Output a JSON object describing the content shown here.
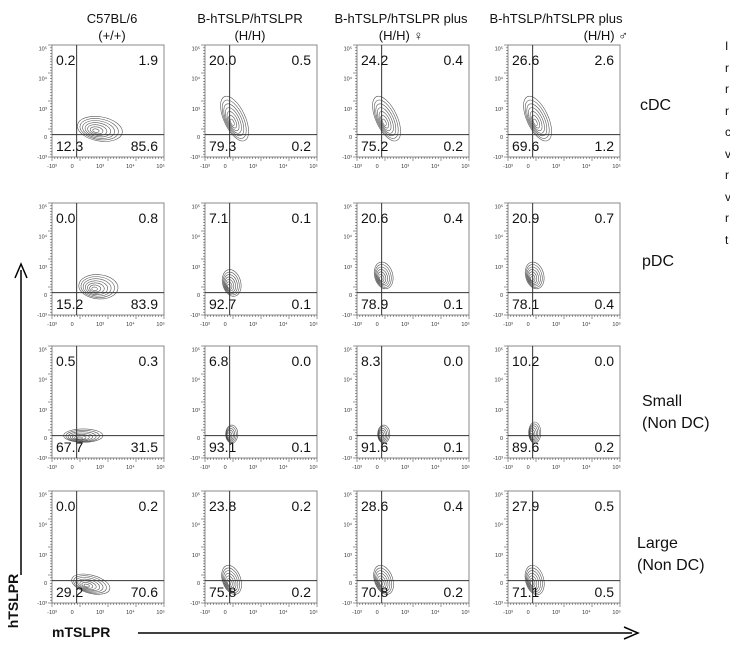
{
  "columns": [
    {
      "line1": "C57BL/6",
      "line2": "(+/+)"
    },
    {
      "line1": "B-hTSLP/hTSLPR",
      "line2": "(H/H)"
    },
    {
      "line1": "B-hTSLP/hTSLPR plus",
      "line2": "(H/H) ♀"
    },
    {
      "line1": "B-hTSLP/hTSLPR plus",
      "line2": "(H/H) ♂"
    }
  ],
  "rows": [
    {
      "line1": "cDC",
      "line2": ""
    },
    {
      "line1": "pDC",
      "line2": ""
    },
    {
      "line1": "Small",
      "line2": "(Non DC)"
    },
    {
      "line1": "Large",
      "line2": "(Non DC)"
    }
  ],
  "axes": {
    "x_label": "mTSLPR",
    "y_label": "hTSLPR"
  },
  "side_letters": [
    "I",
    "r",
    "r",
    "r",
    "c",
    "v",
    "r",
    "v",
    "r",
    "t"
  ],
  "chart_data": {
    "type": "contour",
    "x_axis": {
      "scale": "biexponential",
      "ticks": [
        "-10³",
        "0",
        "10³",
        "10⁴",
        "10⁵"
      ]
    },
    "y_axis": {
      "scale": "biexponential",
      "ticks": [
        "-10³",
        "0",
        "10³",
        "10⁴",
        "10⁵"
      ]
    },
    "quadrant_order": [
      "upper-left",
      "upper-right",
      "lower-left",
      "lower-right"
    ],
    "panels": [
      [
        {
          "quadrants": [
            "0.2",
            "1.9",
            "12.3",
            "85.6"
          ],
          "blob": {
            "cx": 0.7,
            "cy": 0.2,
            "rx": 0.75,
            "ry": 0.4,
            "rot": -10
          }
        },
        {
          "quadrants": [
            "20.0",
            "0.5",
            "79.3",
            "0.2"
          ],
          "blob": {
            "cx": 0.1,
            "cy": 0.5,
            "rx": 0.35,
            "ry": 0.8,
            "rot": 25
          }
        },
        {
          "quadrants": [
            "24.2",
            "0.4",
            "75.2",
            "0.2"
          ],
          "blob": {
            "cx": 0.1,
            "cy": 0.5,
            "rx": 0.35,
            "ry": 0.8,
            "rot": 25
          }
        },
        {
          "quadrants": [
            "26.6",
            "2.6",
            "69.6",
            "1.2"
          ],
          "blob": {
            "cx": 0.1,
            "cy": 0.5,
            "rx": 0.35,
            "ry": 0.8,
            "rot": 25
          }
        }
      ],
      [
        {
          "quadrants": [
            "0.0",
            "0.8",
            "15.2",
            "83.9"
          ],
          "blob": {
            "cx": 0.65,
            "cy": 0.2,
            "rx": 0.65,
            "ry": 0.4,
            "rot": -5
          }
        },
        {
          "quadrants": [
            "7.1",
            "0.1",
            "92.7",
            "0.1"
          ],
          "blob": {
            "cx": 0.0,
            "cy": 0.3,
            "rx": 0.3,
            "ry": 0.45,
            "rot": 15
          }
        },
        {
          "quadrants": [
            "20.6",
            "0.4",
            "78.9",
            "0.1"
          ],
          "blob": {
            "cx": 0.0,
            "cy": 0.55,
            "rx": 0.3,
            "ry": 0.45,
            "rot": 15
          }
        },
        {
          "quadrants": [
            "20.9",
            "0.7",
            "78.1",
            "0.4"
          ],
          "blob": {
            "cx": 0.0,
            "cy": 0.55,
            "rx": 0.3,
            "ry": 0.45,
            "rot": 15
          }
        }
      ],
      [
        {
          "quadrants": [
            "0.5",
            "0.3",
            "67.7",
            "31.5"
          ],
          "blob": {
            "cx": 0.15,
            "cy": 0.0,
            "rx": 0.65,
            "ry": 0.22,
            "rot": 0
          }
        },
        {
          "quadrants": [
            "6.8",
            "0.0",
            "93.1",
            "0.1"
          ],
          "blob": {
            "cx": 0.0,
            "cy": 0.05,
            "rx": 0.2,
            "ry": 0.3,
            "rot": 0
          }
        },
        {
          "quadrants": [
            "8.3",
            "0.0",
            "91.6",
            "0.1"
          ],
          "blob": {
            "cx": 0.0,
            "cy": 0.05,
            "rx": 0.2,
            "ry": 0.3,
            "rot": 0
          }
        },
        {
          "quadrants": [
            "10.2",
            "0.0",
            "89.6",
            "0.2"
          ],
          "blob": {
            "cx": 0.0,
            "cy": 0.1,
            "rx": 0.2,
            "ry": 0.35,
            "rot": 0
          }
        }
      ],
      [
        {
          "quadrants": [
            "0.0",
            "0.2",
            "29.2",
            "70.6"
          ],
          "blob": {
            "cx": 0.4,
            "cy": -0.1,
            "rx": 0.65,
            "ry": 0.3,
            "rot": -15
          }
        },
        {
          "quadrants": [
            "23.8",
            "0.2",
            "75.8",
            "0.2"
          ],
          "blob": {
            "cx": 0.0,
            "cy": 0.0,
            "rx": 0.3,
            "ry": 0.5,
            "rot": 20
          }
        },
        {
          "quadrants": [
            "28.6",
            "0.4",
            "70.8",
            "0.2"
          ],
          "blob": {
            "cx": 0.0,
            "cy": 0.0,
            "rx": 0.3,
            "ry": 0.5,
            "rot": 20
          }
        },
        {
          "quadrants": [
            "27.9",
            "0.5",
            "71.1",
            "0.5"
          ],
          "blob": {
            "cx": 0.0,
            "cy": 0.0,
            "rx": 0.3,
            "ry": 0.5,
            "rot": 15
          }
        }
      ]
    ]
  }
}
